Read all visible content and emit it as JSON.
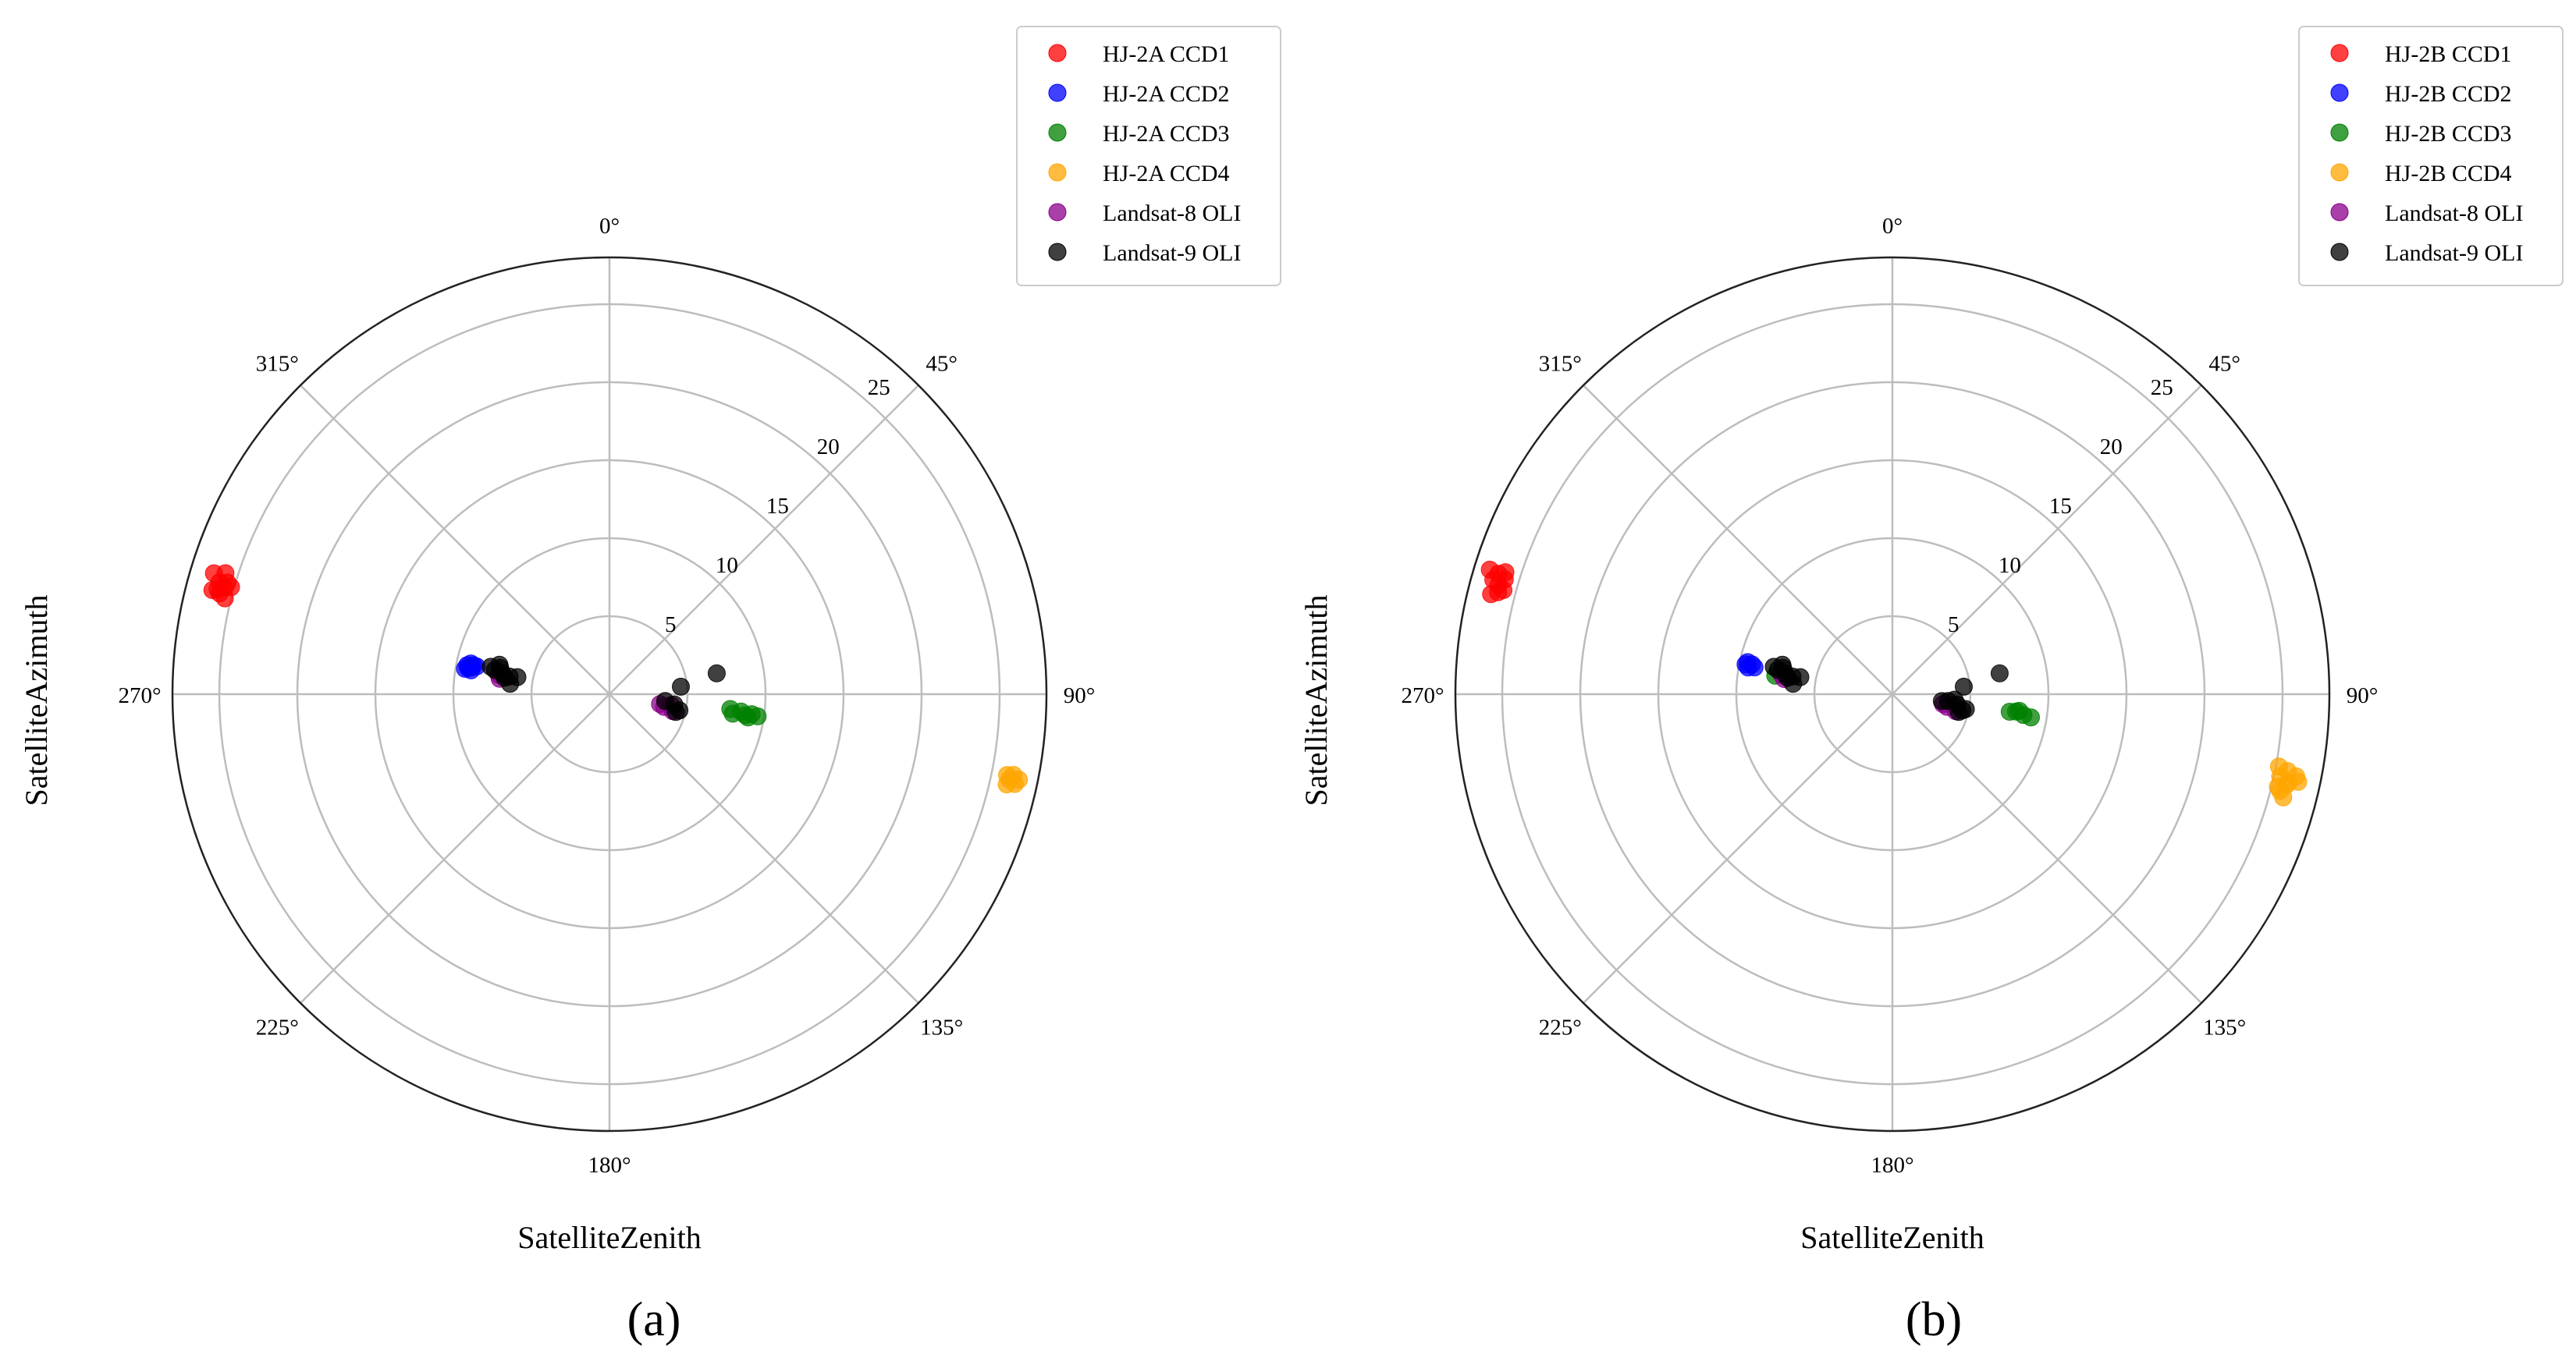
{
  "figure": {
    "panels": [
      {
        "tag": "(a)",
        "ylabel": "SatelliteAzimuth",
        "xlabel": "SatelliteZenith"
      },
      {
        "tag": "(b)",
        "ylabel": "SatelliteAzimuth",
        "xlabel": "SatelliteZenith"
      }
    ]
  },
  "chart_data": [
    {
      "type": "scatter",
      "projection": "polar",
      "title": "",
      "panel_label": "(a)",
      "theta_label": "SatelliteAzimuth",
      "r_label": "SatelliteZenith",
      "theta_direction": "clockwise",
      "theta_zero": "top",
      "theta_ticks": [
        0,
        45,
        90,
        135,
        180,
        225,
        270,
        315
      ],
      "theta_tick_labels": [
        "0°",
        "45°",
        "90°",
        "135°",
        "180°",
        "225°",
        "270°",
        "315°"
      ],
      "r_ticks": [
        5,
        10,
        15,
        20,
        25
      ],
      "r_tick_labels": [
        "5",
        "10",
        "15",
        "20",
        "25"
      ],
      "rlim": [
        0,
        28
      ],
      "grid": true,
      "legend_position": "top-right",
      "series": [
        {
          "name": "HJ-2A CCD1",
          "color": "#ff0000",
          "points": [
            [
              287.0,
              26.5
            ],
            [
              286.0,
              26.0
            ],
            [
              285.0,
              26.0
            ],
            [
              284.5,
              25.8
            ],
            [
              285.5,
              25.6
            ],
            [
              284.0,
              25.4
            ],
            [
              285.8,
              25.2
            ],
            [
              287.5,
              25.8
            ],
            [
              286.3,
              25.5
            ],
            [
              284.7,
              26.3
            ]
          ]
        },
        {
          "name": "HJ-2A CCD2",
          "color": "#0000ff",
          "points": [
            [
              281.5,
              9.3
            ],
            [
              280.5,
              9.2
            ],
            [
              281.0,
              9.0
            ],
            [
              282.0,
              8.9
            ],
            [
              280.0,
              9.4
            ],
            [
              281.8,
              8.7
            ],
            [
              279.8,
              9.0
            ],
            [
              282.5,
              9.1
            ]
          ]
        },
        {
          "name": "HJ-2A CCD3",
          "color": "#008000",
          "points": [
            [
              98.0,
              9.2
            ],
            [
              97.5,
              8.5
            ],
            [
              99.0,
              8.0
            ],
            [
              98.5,
              9.6
            ],
            [
              97.0,
              7.8
            ],
            [
              98.8,
              8.8
            ],
            [
              99.5,
              9.0
            ]
          ]
        },
        {
          "name": "HJ-2A CCD4",
          "color": "#ffa500",
          "points": [
            [
              102.0,
              26.2
            ],
            [
              101.5,
              26.0
            ],
            [
              102.5,
              26.6
            ],
            [
              101.3,
              26.4
            ],
            [
              102.8,
              26.1
            ],
            [
              101.8,
              26.8
            ]
          ]
        },
        {
          "name": "Landsat-8 OLI",
          "color": "#8b008b",
          "points": [
            [
              103.0,
              3.6
            ],
            [
              101.0,
              3.3
            ],
            [
              105.0,
              4.2
            ],
            [
              100.0,
              4.0
            ],
            [
              278.0,
              7.1
            ],
            [
              280.0,
              7.2
            ]
          ]
        },
        {
          "name": "Landsat-9 OLI",
          "color": "#000000",
          "points": [
            [
              282.0,
              7.5
            ],
            [
              281.0,
              7.0
            ],
            [
              280.0,
              6.5
            ],
            [
              283.0,
              7.8
            ],
            [
              280.5,
              6.0
            ],
            [
              276.0,
              6.4
            ],
            [
              279.0,
              6.8
            ],
            [
              283.5,
              7.2
            ],
            [
              285.0,
              7.3
            ],
            [
              84.0,
              4.6
            ],
            [
              79.0,
              7.0
            ],
            [
              99.0,
              4.2
            ],
            [
              103.0,
              4.6
            ],
            [
              97.0,
              3.6
            ],
            [
              105.0,
              4.4
            ]
          ]
        }
      ]
    },
    {
      "type": "scatter",
      "projection": "polar",
      "title": "",
      "panel_label": "(b)",
      "theta_label": "SatelliteAzimuth",
      "r_label": "SatelliteZenith",
      "theta_direction": "clockwise",
      "theta_zero": "top",
      "theta_ticks": [
        0,
        45,
        90,
        135,
        180,
        225,
        270,
        315
      ],
      "theta_tick_labels": [
        "0°",
        "45°",
        "90°",
        "135°",
        "180°",
        "225°",
        "270°",
        "315°"
      ],
      "r_ticks": [
        5,
        10,
        15,
        20,
        25
      ],
      "r_tick_labels": [
        "5",
        "10",
        "15",
        "20",
        "25"
      ],
      "rlim": [
        0,
        28
      ],
      "grid": true,
      "legend_position": "top-right",
      "series": [
        {
          "name": "HJ-2B CCD1",
          "color": "#ff0000",
          "points": [
            [
              286.0,
              26.6
            ],
            [
              287.0,
              26.4
            ],
            [
              285.5,
              26.2
            ],
            [
              286.5,
              25.9
            ],
            [
              284.5,
              26.1
            ],
            [
              287.5,
              26.0
            ],
            [
              285.0,
              25.8
            ],
            [
              284.0,
              26.5
            ],
            [
              287.2,
              27.0
            ]
          ]
        },
        {
          "name": "HJ-2B CCD2",
          "color": "#0000ff",
          "points": [
            [
              281.5,
              9.6
            ],
            [
              280.5,
              9.4
            ],
            [
              282.0,
              9.2
            ],
            [
              281.0,
              9.0
            ],
            [
              282.5,
              9.5
            ]
          ]
        },
        {
          "name": "HJ-2B CCD3",
          "color": "#008000",
          "points": [
            [
              279.0,
              7.6
            ],
            [
              99.0,
              8.5
            ],
            [
              98.0,
              8.0
            ],
            [
              99.5,
              9.0
            ],
            [
              98.5,
              7.6
            ],
            [
              97.5,
              8.2
            ]
          ]
        },
        {
          "name": "HJ-2B CCD4",
          "color": "#ffa500",
          "points": [
            [
              101.0,
              25.8
            ],
            [
              103.0,
              25.9
            ],
            [
              102.0,
              25.4
            ],
            [
              104.0,
              25.6
            ],
            [
              101.5,
              26.4
            ],
            [
              102.6,
              26.0
            ],
            [
              100.6,
              25.2
            ],
            [
              103.5,
              25.4
            ],
            [
              104.8,
              25.9
            ],
            [
              102.2,
              26.6
            ]
          ]
        },
        {
          "name": "Landsat-8 OLI",
          "color": "#8b008b",
          "points": [
            [
              103.0,
              3.6
            ],
            [
              101.0,
              3.3
            ],
            [
              105.0,
              4.2
            ],
            [
              100.0,
              4.0
            ],
            [
              278.0,
              7.0
            ],
            [
              280.0,
              7.2
            ]
          ]
        },
        {
          "name": "Landsat-9 OLI",
          "color": "#000000",
          "points": [
            [
              282.0,
              7.5
            ],
            [
              281.0,
              7.0
            ],
            [
              280.0,
              6.5
            ],
            [
              283.0,
              7.8
            ],
            [
              280.5,
              6.0
            ],
            [
              276.0,
              6.4
            ],
            [
              279.0,
              6.8
            ],
            [
              283.5,
              7.2
            ],
            [
              285.0,
              7.3
            ],
            [
              84.0,
              4.6
            ],
            [
              79.0,
              7.0
            ],
            [
              99.0,
              4.2
            ],
            [
              103.0,
              4.6
            ],
            [
              97.0,
              3.6
            ],
            [
              105.0,
              4.4
            ],
            [
              95.0,
              4.0
            ],
            [
              101.5,
              4.8
            ],
            [
              98.0,
              3.2
            ]
          ]
        }
      ]
    }
  ]
}
